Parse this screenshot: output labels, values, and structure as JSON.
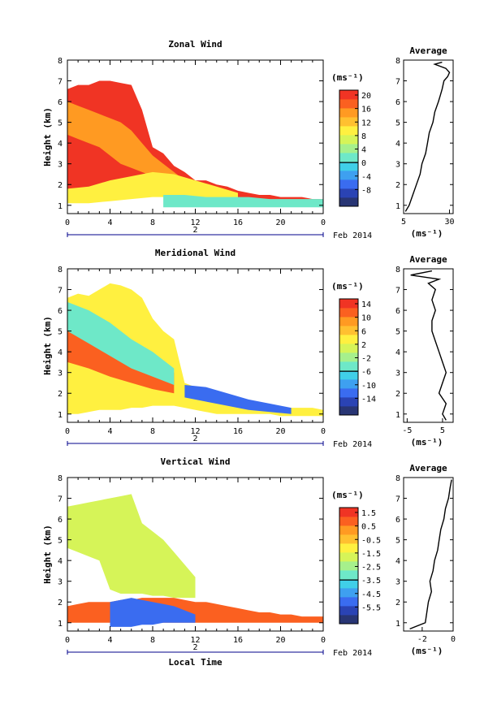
{
  "colors": {
    "scale": [
      "#283574",
      "#2a43b4",
      "#3a6cf0",
      "#3ea0f0",
      "#40cfe8",
      "#6ee8c8",
      "#a6f08c",
      "#d6f458",
      "#fff040",
      "#ffc030",
      "#ff9a22",
      "#fb6020",
      "#f03424"
    ]
  },
  "x_axis": {
    "ticks": [
      "0",
      "4",
      "8",
      "12",
      "16",
      "20",
      "0"
    ],
    "date_day": "2",
    "date_label": "Feb 2014",
    "label": "Local Time"
  },
  "y_axis": {
    "ticks": [
      "1",
      "2",
      "3",
      "4",
      "5",
      "6",
      "7",
      "8"
    ],
    "label": "Height (km)"
  },
  "units": "(ms⁻¹)",
  "panels": [
    {
      "title": "Zonal Wind",
      "colorbar_ticks": [
        "20",
        "16",
        "12",
        "8",
        "4",
        "0",
        "-4",
        "-8"
      ],
      "profile_title": "Average",
      "profile_xticks": [
        "5",
        "30"
      ],
      "profile_units": "(ms⁻¹)"
    },
    {
      "title": "Meridional Wind",
      "colorbar_ticks": [
        "14",
        "10",
        "6",
        "2",
        "-2",
        "-6",
        "-10",
        "-14"
      ],
      "profile_title": "Average",
      "profile_xticks": [
        "-5",
        "5"
      ],
      "profile_units": "(ms⁻¹)"
    },
    {
      "title": "Vertical Wind",
      "colorbar_ticks": [
        "1.5",
        "0.5",
        "-0.5",
        "-1.5",
        "-2.5",
        "-3.5",
        "-4.5",
        "-5.5"
      ],
      "profile_title": "Average",
      "profile_xticks": [
        "-2",
        "0"
      ],
      "profile_units": "(ms⁻¹)"
    }
  ],
  "chart_data": [
    {
      "type": "heatmap",
      "title": "Zonal Wind",
      "xlabel": "Local Time",
      "ylabel": "Height (km)",
      "xlim": [
        0,
        24
      ],
      "ylim": [
        0.6,
        8
      ],
      "colorbar_range": [
        -10,
        22
      ],
      "regions": [
        {
          "x": [
            0,
            1,
            2,
            3,
            4,
            5,
            6,
            7,
            8,
            9,
            10,
            11,
            12,
            13,
            14,
            15,
            16,
            17,
            18,
            19,
            20,
            21,
            22,
            23,
            24
          ],
          "bottom": [
            1.2,
            1.2,
            1.2,
            1.3,
            1.5,
            1.5,
            1.6,
            1.7,
            1.8,
            1.9,
            2.0,
            1.8,
            1.6,
            1.5,
            1.4,
            1.3,
            1.2,
            1.1,
            1.0,
            1.0,
            1.0,
            1.0,
            1.0,
            1.0,
            1.0
          ],
          "top": [
            6.6,
            6.8,
            6.8,
            7.0,
            7.0,
            6.9,
            6.8,
            5.6,
            3.8,
            3.5,
            2.9,
            2.6,
            2.2,
            2.2,
            2.0,
            1.9,
            1.7,
            1.6,
            1.5,
            1.5,
            1.4,
            1.4,
            1.4,
            1.3,
            1.3
          ],
          "value": 22
        },
        {
          "x": [
            0,
            1,
            2,
            3,
            4,
            5,
            6,
            7,
            8,
            9,
            10,
            11,
            12
          ],
          "bottom": [
            4.4,
            4.2,
            4.0,
            3.8,
            3.4,
            3.0,
            2.8,
            2.6,
            2.4,
            2.2,
            2.0,
            1.8,
            1.6
          ],
          "top": [
            6.0,
            5.8,
            5.6,
            5.4,
            5.2,
            5.0,
            4.6,
            4.0,
            3.4,
            3.0,
            2.6,
            2.2,
            1.9
          ],
          "value": 16
        },
        {
          "x": [
            0,
            2,
            4,
            6,
            8,
            10,
            12,
            14,
            16
          ],
          "bottom": [
            1.1,
            1.1,
            1.2,
            1.3,
            1.4,
            1.4,
            1.3,
            1.2,
            1.1
          ],
          "top": [
            1.8,
            1.9,
            2.2,
            2.4,
            2.6,
            2.5,
            2.2,
            1.9,
            1.6
          ],
          "value": 12
        },
        {
          "x": [
            9,
            11,
            13,
            15,
            17,
            19,
            21,
            23,
            24
          ],
          "bottom": [
            0.9,
            0.9,
            0.9,
            0.9,
            0.9,
            0.9,
            0.9,
            0.9,
            0.9
          ],
          "top": [
            1.5,
            1.5,
            1.4,
            1.4,
            1.4,
            1.3,
            1.3,
            1.3,
            1.3
          ],
          "value": 4
        }
      ],
      "profile": {
        "title": "Average",
        "xlim": [
          5,
          32
        ],
        "ylim": [
          0.6,
          8
        ],
        "h": [
          0.7,
          1.0,
          1.5,
          2.0,
          2.5,
          3.0,
          3.5,
          4.0,
          4.5,
          5.0,
          5.5,
          6.0,
          6.3,
          6.6,
          7.0,
          7.2,
          7.4,
          7.6,
          7.8,
          7.9
        ],
        "v": [
          6,
          8,
          10,
          12,
          14,
          15,
          17,
          18,
          19,
          21,
          22,
          24,
          25,
          26,
          27,
          29,
          30,
          28,
          22,
          26
        ]
      }
    },
    {
      "type": "heatmap",
      "title": "Meridional Wind",
      "xlabel": "Local Time",
      "ylabel": "Height (km)",
      "xlim": [
        0,
        24
      ],
      "ylim": [
        0.6,
        8
      ],
      "colorbar_range": [
        -16,
        16
      ],
      "regions": [
        {
          "x": [
            0,
            1,
            2,
            3,
            4,
            5,
            6,
            7,
            8,
            9,
            10,
            11,
            12,
            13,
            14,
            15,
            16,
            17,
            18,
            19,
            20,
            21,
            22,
            23,
            24
          ],
          "bottom": [
            1.0,
            1.0,
            1.1,
            1.2,
            1.2,
            1.2,
            1.3,
            1.3,
            1.4,
            1.4,
            1.4,
            1.3,
            1.2,
            1.1,
            1.0,
            1.0,
            1.0,
            1.0,
            1.0,
            1.0,
            0.9,
            0.9,
            0.9,
            0.9,
            0.9
          ],
          "top": [
            6.6,
            6.8,
            6.7,
            7.0,
            7.3,
            7.2,
            7.0,
            6.6,
            5.6,
            5.0,
            4.6,
            2.5,
            2.3,
            2.1,
            1.9,
            1.7,
            1.6,
            1.5,
            1.4,
            1.4,
            1.3,
            1.3,
            1.3,
            1.3,
            1.2
          ],
          "value": 4
        },
        {
          "x": [
            0,
            2,
            4,
            6,
            8,
            10
          ],
          "bottom": [
            3.5,
            3.2,
            2.8,
            2.5,
            2.2,
            2.0
          ],
          "top": [
            5.0,
            4.6,
            4.2,
            3.8,
            3.4,
            3.0
          ],
          "value": 12
        },
        {
          "x": [
            11,
            13,
            15,
            17,
            19,
            21
          ],
          "bottom": [
            1.8,
            1.6,
            1.4,
            1.2,
            1.1,
            1.0
          ],
          "top": [
            2.4,
            2.3,
            2.0,
            1.7,
            1.5,
            1.3
          ],
          "value": -10
        },
        {
          "x": [
            0,
            2,
            4,
            6,
            8,
            10
          ],
          "bottom": [
            5.0,
            4.4,
            3.8,
            3.2,
            2.8,
            2.4
          ],
          "top": [
            6.4,
            6.0,
            5.4,
            4.6,
            4.0,
            3.2
          ],
          "value": -2
        }
      ],
      "profile": {
        "title": "Average",
        "xlim": [
          -6,
          8
        ],
        "ylim": [
          0.6,
          8
        ],
        "h": [
          0.7,
          1.0,
          1.5,
          2.0,
          2.5,
          3.0,
          3.5,
          4.0,
          4.5,
          5.0,
          5.5,
          6.0,
          6.5,
          7.0,
          7.3,
          7.5,
          7.7,
          7.9
        ],
        "v": [
          6,
          5,
          6,
          4,
          5,
          6,
          5,
          4,
          3,
          2,
          2,
          3,
          2,
          3,
          1,
          4,
          -4,
          2
        ]
      }
    },
    {
      "type": "heatmap",
      "title": "Vertical Wind",
      "xlabel": "Local Time",
      "ylabel": "Height (km)",
      "xlim": [
        0,
        24
      ],
      "ylim": [
        0.6,
        8
      ],
      "colorbar_range": [
        -6,
        2
      ],
      "regions": [
        {
          "x": [
            0,
            1,
            2,
            3,
            4,
            5,
            6,
            7,
            8,
            9,
            10,
            11,
            12,
            13,
            14,
            15,
            16,
            17,
            18,
            19,
            20,
            21,
            22,
            23,
            24
          ],
          "bottom": [
            1.0,
            1.0,
            1.0,
            1.0,
            1.0,
            1.0,
            1.0,
            1.0,
            1.0,
            1.0,
            1.0,
            1.0,
            1.0,
            1.0,
            1.0,
            1.0,
            1.0,
            1.0,
            1.0,
            1.0,
            1.0,
            1.0,
            1.0,
            1.0,
            1.0
          ],
          "top": [
            1.8,
            1.9,
            2.0,
            2.0,
            2.0,
            2.1,
            2.1,
            2.2,
            2.2,
            2.2,
            2.2,
            2.1,
            2.0,
            2.0,
            1.9,
            1.8,
            1.7,
            1.6,
            1.5,
            1.5,
            1.4,
            1.4,
            1.3,
            1.3,
            1.3
          ],
          "value": 0.8
        },
        {
          "x": [
            0,
            1,
            2,
            3,
            4,
            5,
            6,
            7,
            8,
            9,
            10,
            11,
            12
          ],
          "bottom": [
            4.6,
            4.4,
            4.2,
            4.0,
            2.6,
            2.4,
            2.4,
            2.4,
            2.3,
            2.3,
            2.2,
            2.2,
            2.2
          ],
          "top": [
            6.6,
            6.7,
            6.8,
            6.9,
            7.0,
            7.1,
            7.2,
            5.8,
            5.4,
            5.0,
            4.4,
            3.8,
            3.2
          ],
          "value": -1.2
        },
        {
          "x": [
            4,
            5,
            6,
            7,
            8,
            9,
            10,
            11,
            12
          ],
          "bottom": [
            0.8,
            0.8,
            0.8,
            0.9,
            0.9,
            1.0,
            1.0,
            1.0,
            1.0
          ],
          "top": [
            2.0,
            2.1,
            2.2,
            2.1,
            2.0,
            1.9,
            1.8,
            1.6,
            1.4
          ],
          "value": -4.5
        }
      ],
      "profile": {
        "title": "Average",
        "xlim": [
          -3.2,
          0
        ],
        "ylim": [
          0.6,
          8
        ],
        "h": [
          0.7,
          1.0,
          1.5,
          2.0,
          2.5,
          3.0,
          3.5,
          4.0,
          4.5,
          5.0,
          5.5,
          6.0,
          6.5,
          7.0,
          7.5,
          7.9
        ],
        "v": [
          -2.8,
          -1.8,
          -1.7,
          -1.6,
          -1.4,
          -1.5,
          -1.3,
          -1.2,
          -1.0,
          -0.9,
          -0.8,
          -0.6,
          -0.5,
          -0.3,
          -0.2,
          -0.1
        ]
      }
    }
  ]
}
